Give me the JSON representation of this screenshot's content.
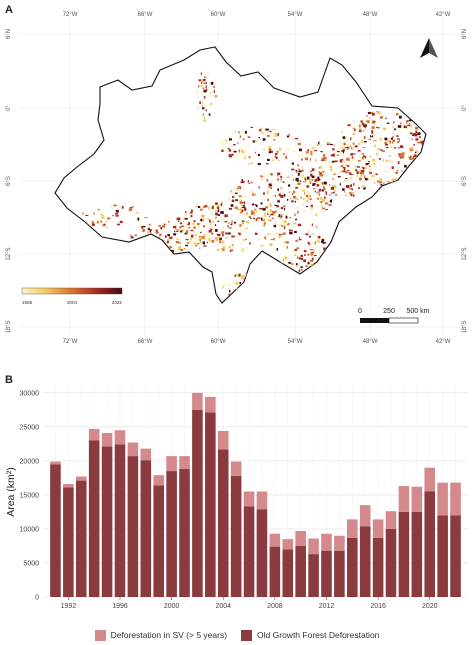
{
  "panel_a": {
    "label": "A",
    "lon_labels": [
      "72°W",
      "66°W",
      "60°W",
      "54°W",
      "48°W",
      "42°W"
    ],
    "lat_labels": [
      "6°N",
      "0°",
      "6°S",
      "12°S",
      "18°S"
    ],
    "colorbar": {
      "tick_labels": [
        "1986",
        "2004",
        "2022"
      ],
      "colors": [
        "#fff3c4",
        "#f2c95a",
        "#d9742b",
        "#a8281e",
        "#4a0a12"
      ]
    },
    "scalebar": {
      "labels": [
        "0",
        "250",
        "500 km"
      ]
    },
    "colors": {
      "region_fill": "#ffffff",
      "region_stroke": "#111111",
      "grid": "#e6e6e6"
    },
    "icon": "north-arrow-icon"
  },
  "panel_b": {
    "label": "B"
  },
  "chart_data": {
    "type": "bar",
    "stacked": true,
    "ylabel": "Area (km²)",
    "xlabel": "",
    "ylim": [
      0,
      31000
    ],
    "y_ticks": [
      0,
      5000,
      10000,
      15000,
      20000,
      25000,
      30000
    ],
    "x_tick_labels": [
      "1992",
      "1996",
      "2000",
      "2004",
      "2008",
      "2012",
      "2016",
      "2020"
    ],
    "categories": [
      "1991",
      "1992",
      "1993",
      "1994",
      "1995",
      "1996",
      "1997",
      "1998",
      "1999",
      "2000",
      "2001",
      "2002",
      "2003",
      "2004",
      "2005",
      "2006",
      "2007",
      "2008",
      "2009",
      "2010",
      "2011",
      "2012",
      "2013",
      "2014",
      "2015",
      "2016",
      "2017",
      "2018",
      "2019",
      "2020",
      "2021",
      "2022"
    ],
    "series": [
      {
        "name": "Old Growth Forest Deforestation",
        "color": "#8b3a3f",
        "values": [
          19500,
          16100,
          17100,
          23000,
          22100,
          22400,
          20700,
          20100,
          16400,
          18500,
          18800,
          27500,
          27100,
          21700,
          17800,
          13300,
          12900,
          7400,
          7000,
          7500,
          6300,
          6800,
          6800,
          8700,
          10400,
          8700,
          10000,
          12500,
          12500,
          15500,
          12000,
          12000
        ]
      },
      {
        "name": "Deforestation in SV (> 5 years)",
        "color": "#d4898c",
        "values": [
          400,
          500,
          600,
          1700,
          2000,
          2100,
          2000,
          1700,
          1500,
          2200,
          1900,
          2500,
          2300,
          2700,
          2100,
          2200,
          2600,
          1900,
          1500,
          2200,
          2300,
          2500,
          2200,
          2700,
          3100,
          2700,
          2600,
          3800,
          3700,
          3500,
          4800,
          4800
        ]
      }
    ],
    "grid": true,
    "legend": {
      "position": "bottom",
      "order": [
        "Deforestation in SV (> 5 years)",
        "Old Growth Forest Deforestation"
      ]
    }
  }
}
